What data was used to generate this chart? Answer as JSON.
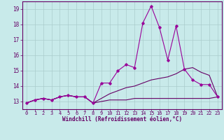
{
  "x": [
    0,
    1,
    2,
    3,
    4,
    5,
    6,
    7,
    8,
    9,
    10,
    11,
    12,
    13,
    14,
    15,
    16,
    17,
    18,
    19,
    20,
    21,
    22,
    23
  ],
  "line1": [
    12.9,
    13.1,
    13.2,
    13.1,
    13.3,
    13.4,
    13.3,
    13.3,
    12.9,
    14.2,
    14.2,
    15.0,
    15.4,
    15.2,
    18.1,
    19.2,
    17.8,
    15.7,
    17.9,
    15.1,
    14.4,
    14.1,
    14.1,
    13.3
  ],
  "line2": [
    12.9,
    13.1,
    13.2,
    13.1,
    13.3,
    13.4,
    13.3,
    13.3,
    12.9,
    13.2,
    13.5,
    13.7,
    13.9,
    14.0,
    14.2,
    14.4,
    14.5,
    14.6,
    14.8,
    15.1,
    15.2,
    14.9,
    14.7,
    13.3
  ],
  "line3": [
    12.9,
    13.1,
    13.2,
    13.1,
    13.3,
    13.4,
    13.3,
    13.3,
    12.9,
    13.0,
    13.1,
    13.1,
    13.1,
    13.2,
    13.2,
    13.2,
    13.2,
    13.2,
    13.2,
    13.2,
    13.2,
    13.2,
    13.2,
    13.3
  ],
  "line_color": "#990099",
  "line_color_dark": "#660066",
  "bg_color": "#c8eaea",
  "grid_color": "#aacccc",
  "axis_color": "#660066",
  "tick_color": "#660066",
  "xlabel": "Windchill (Refroidissement éolien,°C)",
  "ylim": [
    12.5,
    19.5
  ],
  "xlim": [
    -0.5,
    23.5
  ],
  "yticks": [
    13,
    14,
    15,
    16,
    17,
    18,
    19
  ],
  "xticks": [
    0,
    1,
    2,
    3,
    4,
    5,
    6,
    7,
    8,
    9,
    10,
    11,
    12,
    13,
    14,
    15,
    16,
    17,
    18,
    19,
    20,
    21,
    22,
    23
  ]
}
